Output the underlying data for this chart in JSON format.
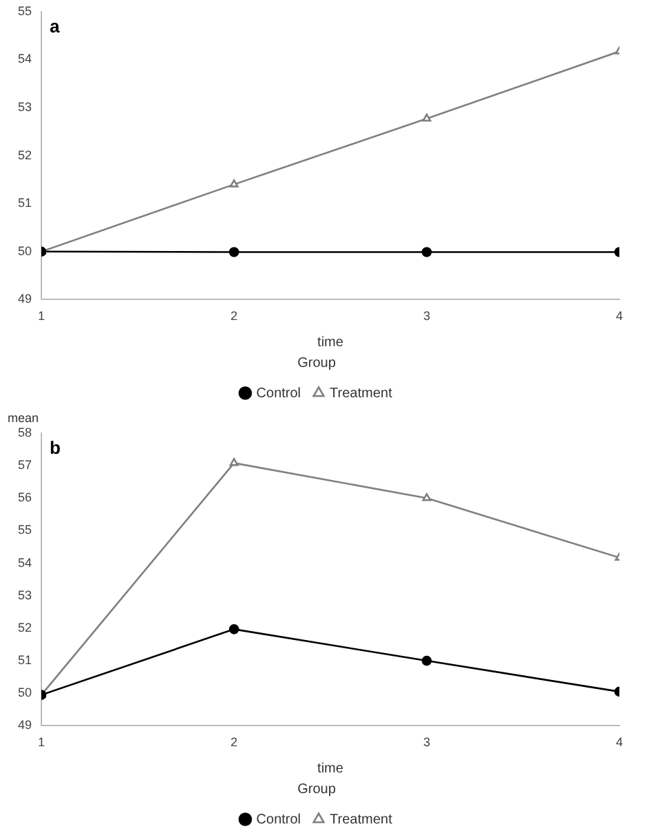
{
  "chart_data": [
    {
      "type": "line",
      "title": "a",
      "xlabel": "time",
      "legend_title": "Group",
      "x": [
        1,
        2,
        3,
        4
      ],
      "xlim": [
        1,
        4
      ],
      "xticks": [
        1,
        2,
        3,
        4
      ],
      "ylim": [
        49,
        55
      ],
      "yticks": [
        49,
        50,
        51,
        52,
        53,
        54,
        55
      ],
      "grid": false,
      "legend": "bottom",
      "series": [
        {
          "name": "Control",
          "color": "#000000",
          "marker": "circle",
          "values": [
            50,
            49.99,
            49.99,
            49.99
          ]
        },
        {
          "name": "Treatment",
          "color": "#808080",
          "marker": "triangle",
          "values": [
            50,
            51.4,
            52.77,
            54.17
          ]
        }
      ]
    },
    {
      "type": "line",
      "title": "b",
      "xlabel": "time",
      "ylabel": "mean",
      "legend_title": "Group",
      "x": [
        1,
        2,
        3,
        4
      ],
      "xlim": [
        1,
        4
      ],
      "xticks": [
        1,
        2,
        3,
        4
      ],
      "ylim": [
        49,
        58
      ],
      "yticks": [
        49,
        50,
        51,
        52,
        53,
        54,
        55,
        56,
        57,
        58
      ],
      "grid": false,
      "legend": "bottom",
      "series": [
        {
          "name": "Control",
          "color": "#000000",
          "marker": "circle",
          "values": [
            49.95,
            51.97,
            51.0,
            50.05
          ]
        },
        {
          "name": "Treatment",
          "color": "#808080",
          "marker": "triangle",
          "values": [
            49.95,
            57.08,
            56.0,
            54.17
          ]
        }
      ]
    }
  ]
}
